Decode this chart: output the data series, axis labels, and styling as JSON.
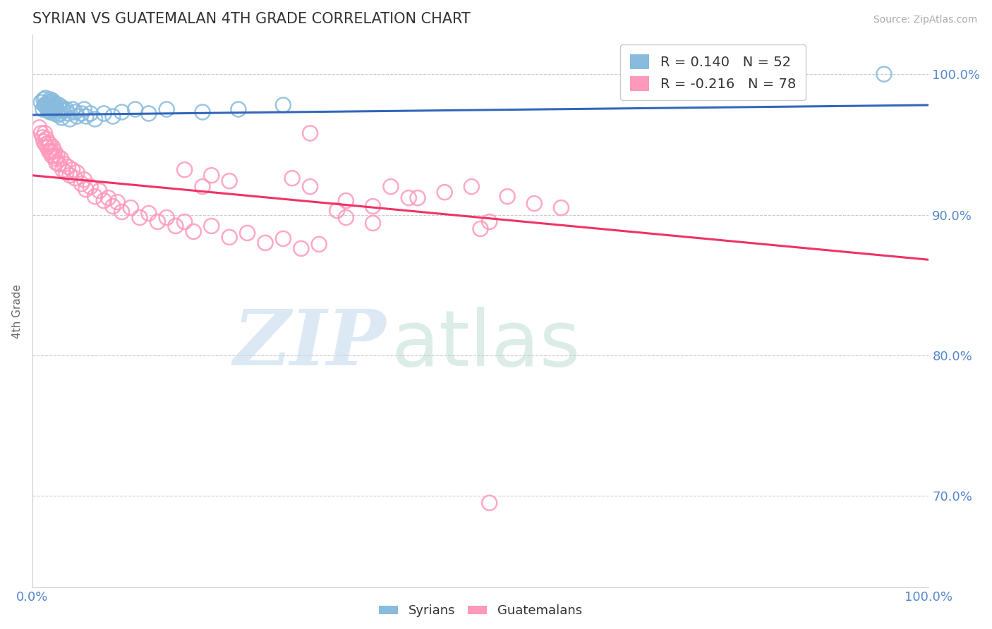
{
  "title": "SYRIAN VS GUATEMALAN 4TH GRADE CORRELATION CHART",
  "source_text": "Source: ZipAtlas.com",
  "ylabel": "4th Grade",
  "x_tick_labels": [
    "0.0%",
    "100.0%"
  ],
  "y_tick_labels": [
    "70.0%",
    "80.0%",
    "90.0%",
    "100.0%"
  ],
  "y_tick_values": [
    0.7,
    0.8,
    0.9,
    1.0
  ],
  "xlim": [
    0.0,
    1.0
  ],
  "ylim": [
    0.635,
    1.028
  ],
  "legend_r_entries": [
    {
      "label": "R = 0.140   N = 52",
      "color": "#88bbdd"
    },
    {
      "label": "R = -0.216   N = 78",
      "color": "#ff99bb"
    }
  ],
  "legend_labels": [
    "Syrians",
    "Guatemalans"
  ],
  "syrian_color": "#88bbdd",
  "guatemalan_color": "#ff99bb",
  "syrian_line_color": "#3366bb",
  "guatemalan_line_color": "#ee3366",
  "background_color": "#ffffff",
  "grid_color": "#cccccc",
  "title_color": "#333333",
  "tick_label_color": "#5588cc",
  "source_color": "#aaaaaa",
  "ylabel_color": "#666666",
  "syrian_line_start_y": 0.971,
  "syrian_line_end_y": 0.978,
  "guatemalan_line_start_y": 0.928,
  "guatemalan_line_end_y": 0.868,
  "syrian_x": [
    0.01,
    0.012,
    0.013,
    0.014,
    0.015,
    0.015,
    0.016,
    0.017,
    0.018,
    0.018,
    0.019,
    0.02,
    0.02,
    0.02,
    0.021,
    0.022,
    0.022,
    0.023,
    0.024,
    0.025,
    0.025,
    0.026,
    0.027,
    0.028,
    0.029,
    0.03,
    0.031,
    0.032,
    0.033,
    0.034,
    0.035,
    0.038,
    0.04,
    0.042,
    0.045,
    0.048,
    0.05,
    0.055,
    0.058,
    0.06,
    0.065,
    0.07,
    0.08,
    0.09,
    0.1,
    0.115,
    0.13,
    0.15,
    0.19,
    0.23,
    0.28,
    0.95
  ],
  "syrian_y": [
    0.98,
    0.975,
    0.982,
    0.978,
    0.977,
    0.983,
    0.979,
    0.976,
    0.98,
    0.974,
    0.978,
    0.982,
    0.976,
    0.973,
    0.98,
    0.977,
    0.975,
    0.981,
    0.978,
    0.975,
    0.972,
    0.979,
    0.976,
    0.974,
    0.971,
    0.978,
    0.975,
    0.972,
    0.969,
    0.976,
    0.974,
    0.975,
    0.972,
    0.968,
    0.975,
    0.973,
    0.97,
    0.972,
    0.975,
    0.97,
    0.972,
    0.968,
    0.972,
    0.97,
    0.973,
    0.975,
    0.972,
    0.975,
    0.973,
    0.975,
    0.978,
    1.0
  ],
  "guatemalan_x": [
    0.008,
    0.01,
    0.012,
    0.013,
    0.014,
    0.015,
    0.016,
    0.017,
    0.018,
    0.019,
    0.02,
    0.021,
    0.022,
    0.023,
    0.024,
    0.025,
    0.026,
    0.027,
    0.028,
    0.03,
    0.032,
    0.034,
    0.036,
    0.038,
    0.04,
    0.042,
    0.045,
    0.048,
    0.05,
    0.055,
    0.058,
    0.06,
    0.065,
    0.07,
    0.075,
    0.08,
    0.085,
    0.09,
    0.095,
    0.1,
    0.11,
    0.12,
    0.13,
    0.14,
    0.15,
    0.16,
    0.17,
    0.18,
    0.2,
    0.22,
    0.24,
    0.26,
    0.28,
    0.3,
    0.32,
    0.35,
    0.38,
    0.4,
    0.43,
    0.46,
    0.49,
    0.5,
    0.53,
    0.56,
    0.59,
    0.34,
    0.35,
    0.38,
    0.29,
    0.31,
    0.42,
    0.31,
    0.2,
    0.17,
    0.22,
    0.19,
    0.51,
    0.51
  ],
  "guatemalan_y": [
    0.962,
    0.958,
    0.955,
    0.952,
    0.958,
    0.95,
    0.954,
    0.948,
    0.951,
    0.945,
    0.95,
    0.945,
    0.942,
    0.948,
    0.942,
    0.945,
    0.94,
    0.937,
    0.942,
    0.936,
    0.94,
    0.932,
    0.936,
    0.93,
    0.934,
    0.928,
    0.932,
    0.926,
    0.93,
    0.922,
    0.925,
    0.918,
    0.92,
    0.913,
    0.917,
    0.91,
    0.912,
    0.906,
    0.909,
    0.902,
    0.905,
    0.898,
    0.901,
    0.895,
    0.898,
    0.892,
    0.895,
    0.888,
    0.892,
    0.884,
    0.887,
    0.88,
    0.883,
    0.876,
    0.879,
    0.91,
    0.906,
    0.92,
    0.912,
    0.916,
    0.92,
    0.89,
    0.913,
    0.908,
    0.905,
    0.903,
    0.898,
    0.894,
    0.926,
    0.92,
    0.912,
    0.958,
    0.928,
    0.932,
    0.924,
    0.92,
    0.895,
    0.695
  ]
}
